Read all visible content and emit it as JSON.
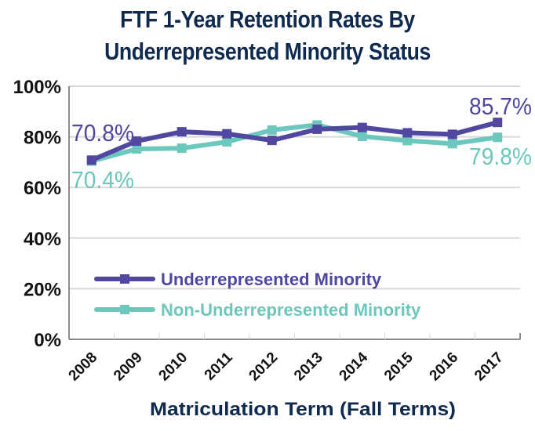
{
  "chart_data": {
    "type": "line",
    "title": "FTF 1-Year Retention Rates By Underrepresented Minority Status",
    "title_lines": [
      "FTF 1-Year Retention Rates By",
      "Underrepresented Minority Status"
    ],
    "xlabel": "Matriculation Term (Fall Terms)",
    "ylabel": "",
    "categories": [
      "2008",
      "2009",
      "2010",
      "2011",
      "2012",
      "2013",
      "2014",
      "2015",
      "2016",
      "2017"
    ],
    "ylim": [
      0,
      100
    ],
    "yticks": [
      0,
      20,
      40,
      60,
      80,
      100
    ],
    "ytick_labels": [
      "0%",
      "20%",
      "40%",
      "60%",
      "80%",
      "100%"
    ],
    "grid": true,
    "legend_position": "center-left inside plot",
    "series": [
      {
        "name": "Underrepresented Minority",
        "color": "#5048a0",
        "values": [
          70.8,
          78.3,
          82.0,
          81.2,
          78.6,
          83.0,
          83.7,
          81.6,
          81.0,
          85.7
        ]
      },
      {
        "name": "Non-Underrepresented Minority",
        "color": "#6cc8bc",
        "values": [
          70.4,
          75.2,
          75.5,
          78.0,
          82.7,
          84.7,
          80.2,
          78.5,
          77.3,
          79.8
        ]
      }
    ],
    "annotations": [
      {
        "text": "70.8%",
        "series": 0,
        "category": "2008"
      },
      {
        "text": "70.4%",
        "series": 1,
        "category": "2008"
      },
      {
        "text": "85.7%",
        "series": 0,
        "category": "2017"
      },
      {
        "text": "79.8%",
        "series": 1,
        "category": "2017"
      }
    ]
  },
  "colors": {
    "title": "#0f2a4f",
    "axis_text": "#111111",
    "grid": "#d9d9d9",
    "axis": "#666666"
  }
}
